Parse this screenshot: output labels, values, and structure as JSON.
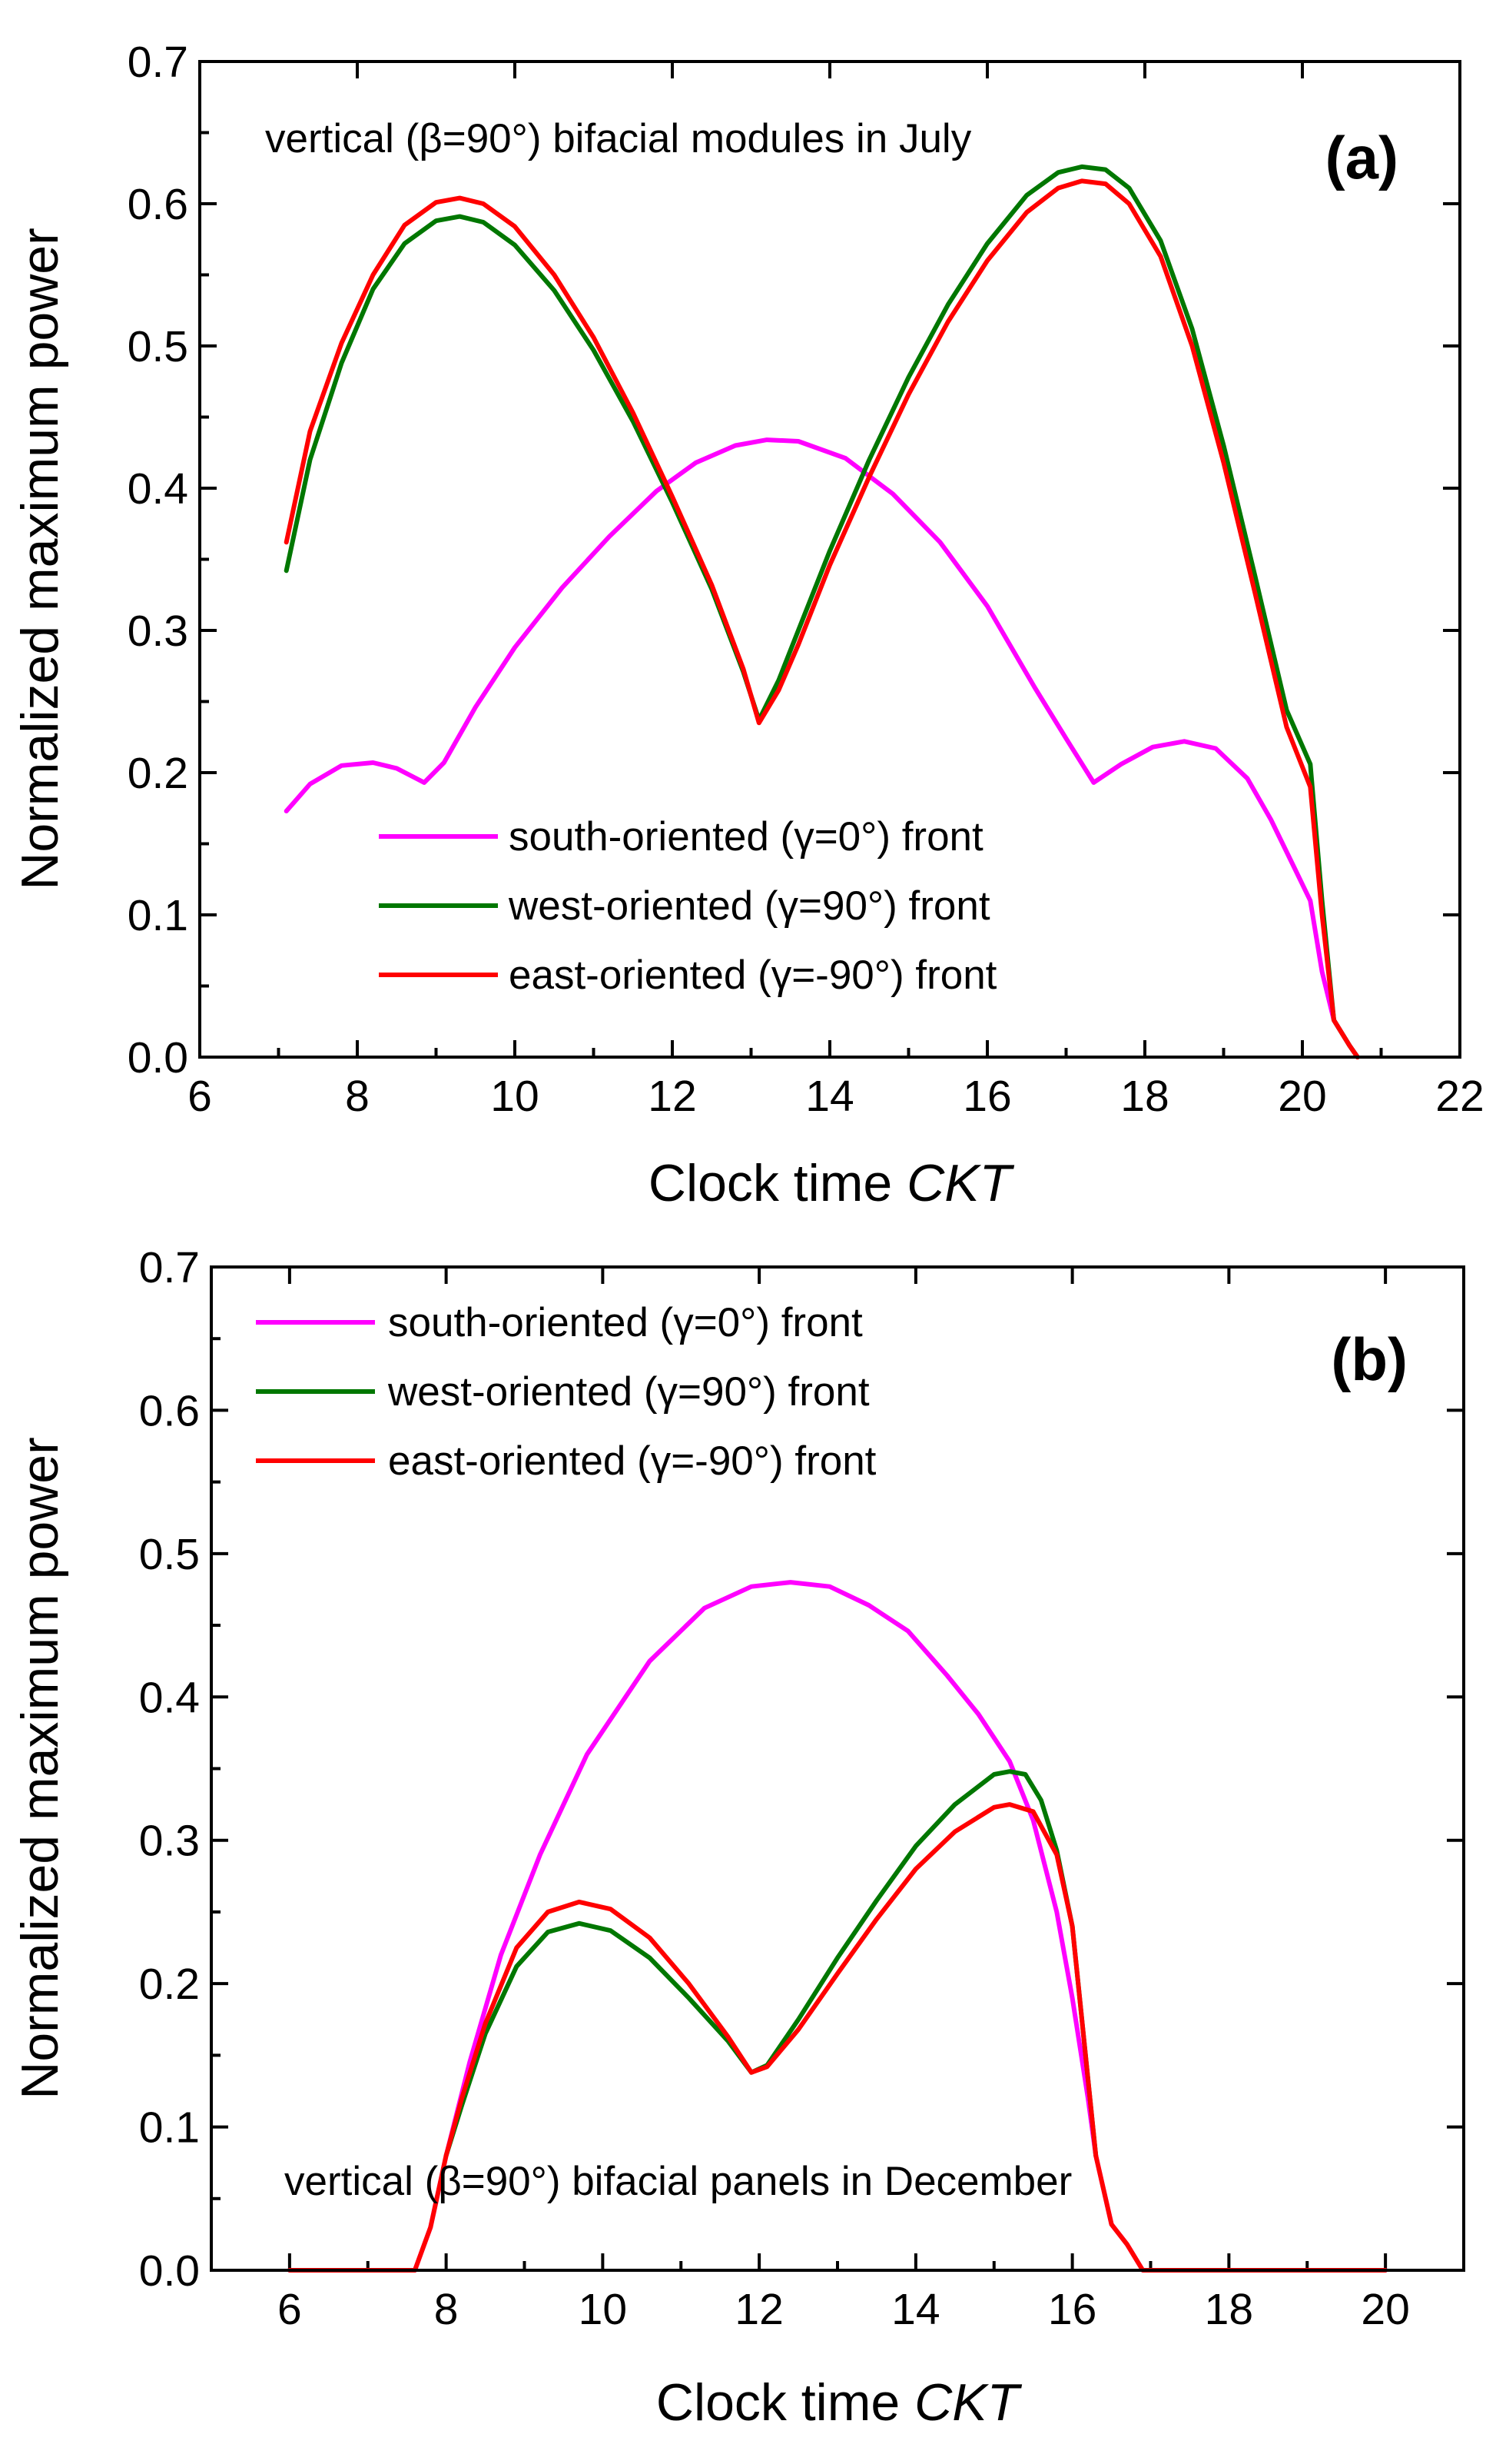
{
  "chart_data": [
    {
      "type": "line",
      "panel_label": "(a)",
      "annotation": "vertical (β=90°) bifacial modules in July",
      "xlabel_prefix": "Clock time ",
      "xlabel_var": "CKT",
      "ylabel": "Normalized maximum power",
      "xlim": [
        6,
        22
      ],
      "ylim": [
        0.0,
        0.7
      ],
      "x_ticks": [
        "6",
        "8",
        "10",
        "12",
        "14",
        "16",
        "18",
        "20",
        "22"
      ],
      "y_ticks": [
        "0.0",
        "0.1",
        "0.2",
        "0.3",
        "0.4",
        "0.5",
        "0.6",
        "0.7"
      ],
      "legend_position": "bottom-center",
      "series": [
        {
          "name": "south-oriented (γ=0°) front",
          "color": "#ff00ff",
          "x": [
            7.1,
            7.4,
            7.8,
            8.2,
            8.5,
            8.85,
            9.1,
            9.5,
            10.0,
            10.6,
            11.2,
            11.8,
            12.3,
            12.8,
            13.2,
            13.6,
            14.2,
            14.8,
            15.4,
            16.0,
            16.6,
            17.0,
            17.35,
            17.7,
            18.1,
            18.5,
            18.9,
            19.3,
            19.6,
            19.9,
            20.1,
            20.25,
            20.4,
            20.6,
            20.7
          ],
          "y": [
            0.173,
            0.192,
            0.205,
            0.207,
            0.203,
            0.193,
            0.207,
            0.246,
            0.288,
            0.33,
            0.366,
            0.398,
            0.418,
            0.43,
            0.434,
            0.433,
            0.421,
            0.396,
            0.362,
            0.317,
            0.26,
            0.224,
            0.193,
            0.206,
            0.218,
            0.222,
            0.217,
            0.196,
            0.167,
            0.133,
            0.11,
            0.06,
            0.026,
            0.008,
            0.0
          ]
        },
        {
          "name": "west-oriented (γ=90°) front",
          "color": "#007700",
          "x": [
            7.1,
            7.4,
            7.8,
            8.2,
            8.6,
            9.0,
            9.3,
            9.6,
            10.0,
            10.5,
            11.0,
            11.5,
            12.0,
            12.5,
            12.9,
            13.1,
            13.35,
            13.6,
            14.0,
            14.5,
            15.0,
            15.5,
            16.0,
            16.5,
            16.9,
            17.2,
            17.5,
            17.8,
            18.2,
            18.6,
            19.0,
            19.4,
            19.8,
            20.1,
            20.25,
            20.4,
            20.6,
            20.7
          ],
          "y": [
            0.342,
            0.42,
            0.488,
            0.54,
            0.572,
            0.588,
            0.591,
            0.587,
            0.571,
            0.539,
            0.497,
            0.447,
            0.39,
            0.329,
            0.271,
            0.237,
            0.265,
            0.3,
            0.356,
            0.42,
            0.478,
            0.529,
            0.572,
            0.606,
            0.622,
            0.626,
            0.624,
            0.611,
            0.574,
            0.512,
            0.43,
            0.338,
            0.244,
            0.206,
            0.11,
            0.026,
            0.008,
            0.0
          ]
        },
        {
          "name": "east-oriented (γ=-90°) front",
          "color": "#ff0000",
          "x": [
            7.1,
            7.4,
            7.8,
            8.2,
            8.6,
            9.0,
            9.3,
            9.6,
            10.0,
            10.5,
            11.0,
            11.5,
            12.0,
            12.5,
            12.9,
            13.1,
            13.35,
            13.6,
            14.0,
            14.5,
            15.0,
            15.5,
            16.0,
            16.5,
            16.9,
            17.2,
            17.5,
            17.8,
            18.2,
            18.6,
            19.0,
            19.4,
            19.8,
            20.1,
            20.25,
            20.4,
            20.6,
            20.7
          ],
          "y": [
            0.362,
            0.44,
            0.502,
            0.55,
            0.585,
            0.601,
            0.604,
            0.6,
            0.584,
            0.55,
            0.506,
            0.453,
            0.394,
            0.332,
            0.273,
            0.235,
            0.258,
            0.29,
            0.346,
            0.408,
            0.466,
            0.517,
            0.56,
            0.594,
            0.611,
            0.616,
            0.614,
            0.6,
            0.563,
            0.5,
            0.418,
            0.326,
            0.232,
            0.19,
            0.1,
            0.026,
            0.008,
            0.0
          ]
        }
      ]
    },
    {
      "type": "line",
      "panel_label": "(b)",
      "annotation": "vertical (β=90°) bifacial panels in December",
      "xlabel_prefix": "Clock time ",
      "xlabel_var": "CKT",
      "ylabel": "Normalized maximum power",
      "xlim": [
        5,
        21
      ],
      "ylim": [
        0.0,
        0.7
      ],
      "x_ticks": [
        "6",
        "8",
        "10",
        "12",
        "14",
        "16",
        "18",
        "20"
      ],
      "y_ticks": [
        "0.0",
        "0.1",
        "0.2",
        "0.3",
        "0.4",
        "0.5",
        "0.6",
        "0.7"
      ],
      "legend_position": "top-left",
      "series": [
        {
          "name": "south-oriented (γ=0°) front",
          "color": "#ff00ff",
          "x": [
            6.0,
            7.0,
            7.6,
            7.8,
            8.0,
            8.3,
            8.7,
            9.2,
            9.8,
            10.6,
            11.3,
            11.9,
            12.4,
            12.9,
            13.4,
            13.9,
            14.4,
            14.8,
            15.2,
            15.5,
            15.8,
            16.0,
            16.2,
            16.3,
            16.5,
            16.7,
            16.9,
            17.5,
            18.5,
            20.0
          ],
          "y": [
            0.0,
            0.0,
            0.0,
            0.03,
            0.08,
            0.145,
            0.22,
            0.29,
            0.36,
            0.425,
            0.462,
            0.477,
            0.48,
            0.477,
            0.464,
            0.446,
            0.415,
            0.388,
            0.355,
            0.314,
            0.25,
            0.19,
            0.12,
            0.08,
            0.032,
            0.018,
            0.0,
            0.0,
            0.0,
            0.0
          ]
        },
        {
          "name": "west-oriented (γ=90°) front",
          "color": "#007700",
          "x": [
            8.0,
            8.2,
            8.5,
            8.9,
            9.3,
            9.7,
            10.1,
            10.6,
            11.1,
            11.6,
            11.9,
            12.1,
            12.5,
            13.0,
            13.5,
            14.0,
            14.5,
            15.0,
            15.2,
            15.4,
            15.6,
            15.8,
            16.0,
            16.3
          ],
          "y": [
            0.08,
            0.115,
            0.165,
            0.212,
            0.236,
            0.242,
            0.237,
            0.218,
            0.19,
            0.16,
            0.138,
            0.143,
            0.175,
            0.218,
            0.258,
            0.296,
            0.325,
            0.346,
            0.348,
            0.346,
            0.328,
            0.293,
            0.24,
            0.08
          ]
        },
        {
          "name": "east-oriented (γ=-90°) front",
          "color": "#ff0000",
          "x": [
            6.0,
            7.0,
            7.6,
            7.8,
            8.0,
            8.2,
            8.5,
            8.9,
            9.3,
            9.7,
            10.1,
            10.6,
            11.1,
            11.6,
            11.9,
            12.1,
            12.5,
            13.0,
            13.5,
            14.0,
            14.5,
            15.0,
            15.2,
            15.5,
            15.8,
            16.0,
            16.3,
            16.5,
            16.7,
            16.9,
            17.5,
            18.5,
            20.0
          ],
          "y": [
            0.0,
            0.0,
            0.0,
            0.03,
            0.08,
            0.12,
            0.172,
            0.225,
            0.25,
            0.257,
            0.252,
            0.232,
            0.2,
            0.163,
            0.138,
            0.142,
            0.168,
            0.207,
            0.245,
            0.28,
            0.306,
            0.323,
            0.325,
            0.32,
            0.29,
            0.24,
            0.08,
            0.032,
            0.018,
            0.0,
            0.0,
            0.0,
            0.0
          ]
        }
      ]
    }
  ]
}
